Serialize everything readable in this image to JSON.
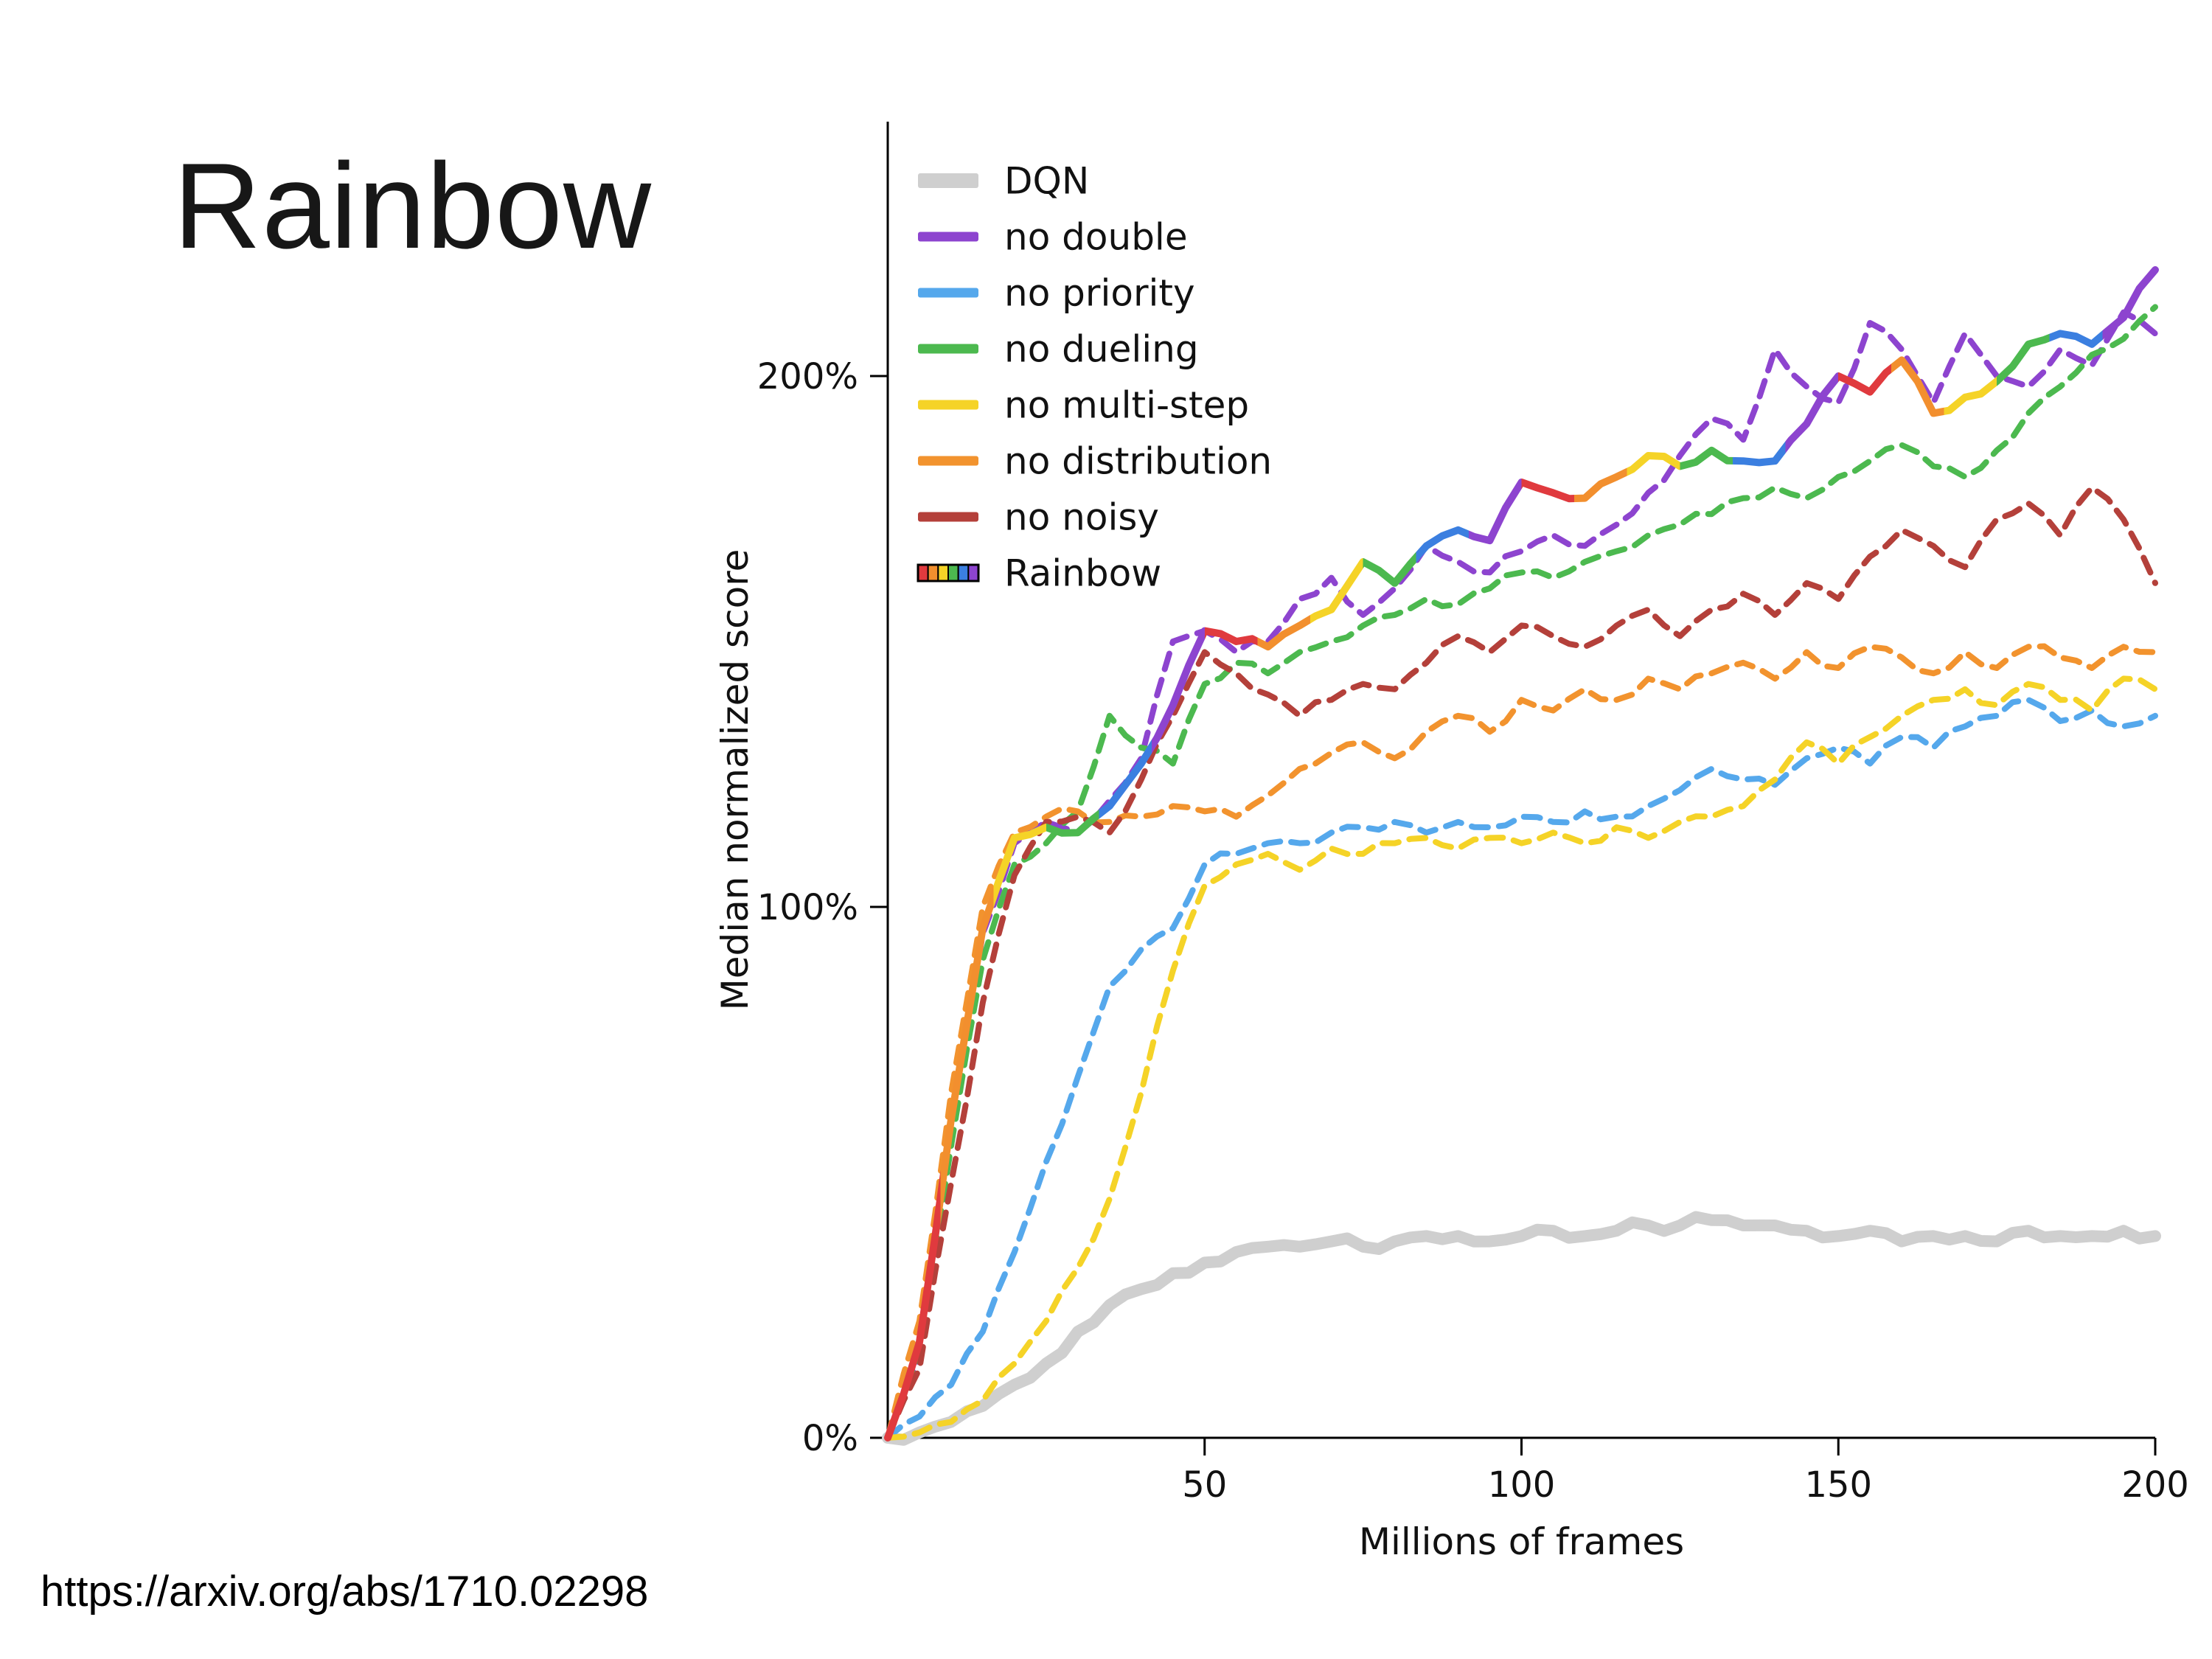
{
  "slide": {
    "title": "Rainbow",
    "source_url": "https://arxiv.org/abs/1710.02298"
  },
  "chart_data": {
    "type": "line",
    "title": "",
    "xlabel": "Millions of frames",
    "ylabel": "Median normalized score",
    "xlim": [
      0,
      200
    ],
    "ylim": [
      0,
      230
    ],
    "grid": false,
    "legend_position": "upper left",
    "x_ticks": [
      50,
      100,
      150,
      200
    ],
    "y_ticks": [
      {
        "value": 0,
        "label": "0%"
      },
      {
        "value": 100,
        "label": "100%"
      },
      {
        "value": 200,
        "label": "200%"
      }
    ],
    "x": [
      0,
      5,
      10,
      15,
      20,
      25,
      30,
      35,
      40,
      45,
      50,
      55,
      60,
      65,
      70,
      75,
      80,
      85,
      90,
      95,
      100,
      105,
      110,
      115,
      120,
      125,
      130,
      135,
      140,
      145,
      150,
      155,
      160,
      165,
      170,
      175,
      180,
      185,
      190,
      195,
      200
    ],
    "rainbow_colors": [
      "#e03a3e",
      "#f28f2e",
      "#f5d327",
      "#4cb94f",
      "#3b7fe0",
      "#8d44cf"
    ],
    "series": [
      {
        "name": "DQN",
        "color": "#cfcfcf",
        "dashed": false,
        "values": [
          0,
          1,
          3,
          6,
          10,
          14,
          20,
          25,
          28,
          31,
          33,
          35,
          36,
          36,
          37,
          36,
          37,
          38,
          38,
          37,
          38,
          39,
          38,
          39,
          40,
          40,
          41,
          40,
          40,
          39,
          38,
          39,
          37,
          38,
          38,
          37,
          39,
          38,
          38,
          39,
          38
        ]
      },
      {
        "name": "no double",
        "color": "#8d44cf",
        "dashed": true,
        "values": [
          0,
          15,
          60,
          95,
          112,
          116,
          114,
          120,
          128,
          150,
          152,
          148,
          150,
          158,
          162,
          155,
          160,
          168,
          165,
          163,
          167,
          170,
          168,
          172,
          178,
          185,
          192,
          188,
          205,
          198,
          195,
          210,
          205,
          195,
          208,
          200,
          198,
          205,
          202,
          212,
          208
        ]
      },
      {
        "name": "no priority",
        "color": "#55a8ec",
        "dashed": true,
        "values": [
          0,
          4,
          10,
          20,
          35,
          52,
          68,
          85,
          92,
          96,
          108,
          110,
          112,
          112,
          114,
          115,
          116,
          114,
          116,
          115,
          117,
          116,
          118,
          117,
          119,
          122,
          126,
          124,
          123,
          128,
          130,
          127,
          132,
          130,
          134,
          136,
          139,
          135,
          137,
          134,
          136
        ]
      },
      {
        "name": "no dueling",
        "color": "#4cb94f",
        "dashed": true,
        "values": [
          0,
          16,
          55,
          90,
          108,
          112,
          118,
          136,
          130,
          127,
          142,
          146,
          144,
          148,
          150,
          153,
          155,
          158,
          157,
          160,
          163,
          162,
          165,
          167,
          170,
          172,
          174,
          177,
          179,
          177,
          181,
          184,
          187,
          183,
          181,
          186,
          193,
          198,
          204,
          207,
          213
        ]
      },
      {
        "name": "no multi-step",
        "color": "#f5d327",
        "dashed": true,
        "values": [
          0,
          1,
          3,
          7,
          14,
          22,
          32,
          45,
          65,
          88,
          104,
          108,
          110,
          107,
          111,
          110,
          112,
          113,
          111,
          113,
          112,
          114,
          112,
          115,
          113,
          116,
          117,
          119,
          124,
          131,
          127,
          132,
          136,
          139,
          141,
          138,
          142,
          139,
          137,
          143,
          141
        ]
      },
      {
        "name": "no distribution",
        "color": "#f2932e",
        "dashed": true,
        "values": [
          0,
          22,
          65,
          100,
          114,
          117,
          118,
          116,
          117,
          119,
          118,
          117,
          121,
          126,
          129,
          131,
          128,
          133,
          136,
          133,
          139,
          137,
          141,
          139,
          143,
          141,
          144,
          146,
          143,
          148,
          145,
          149,
          147,
          144,
          148,
          145,
          149,
          147,
          145,
          149,
          148
        ]
      },
      {
        "name": "no noisy",
        "color": "#b4403a",
        "dashed": true,
        "values": [
          0,
          13,
          48,
          82,
          106,
          116,
          117,
          114,
          124,
          136,
          148,
          144,
          140,
          136,
          139,
          142,
          141,
          146,
          151,
          148,
          153,
          151,
          149,
          153,
          156,
          151,
          156,
          159,
          155,
          161,
          158,
          166,
          171,
          168,
          164,
          173,
          176,
          170,
          179,
          173,
          161
        ]
      },
      {
        "name": "Rainbow",
        "color": "rainbow",
        "dashed": false,
        "values": [
          0,
          18,
          60,
          96,
          113,
          115,
          114,
          119,
          127,
          138,
          152,
          150,
          149,
          153,
          156,
          165,
          161,
          168,
          171,
          169,
          180,
          178,
          177,
          181,
          185,
          183,
          186,
          184,
          184,
          191,
          200,
          197,
          203,
          193,
          196,
          199,
          206,
          208,
          206,
          211,
          220
        ]
      }
    ]
  }
}
